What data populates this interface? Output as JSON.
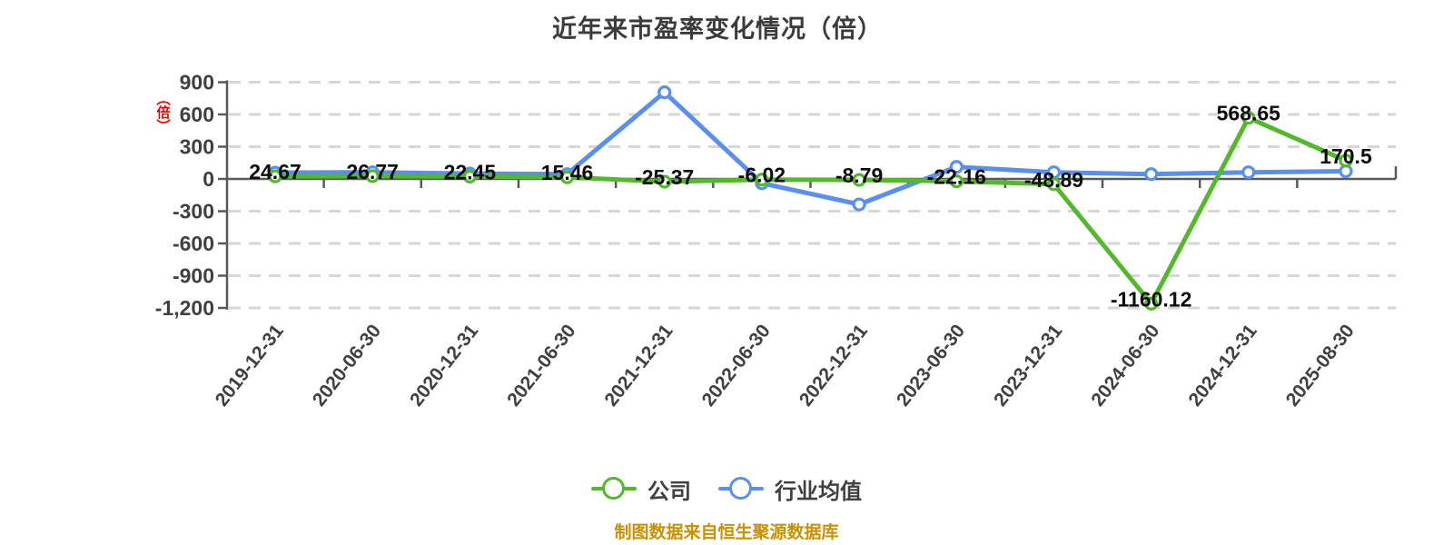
{
  "title": "近年来市盈率变化情况（倍）",
  "y_axis_unit_label": "（倍）",
  "footer": "制图数据来自恒生聚源数据库",
  "colors": {
    "company_green": "#53b82c",
    "industry_blue": "#5a8fee",
    "grid_gray": "#d6d6d6",
    "axis_gray": "#595959",
    "data_label_black": "#0c0c0c",
    "tick_text_gray": "#404040",
    "title_gray": "#3b3b3b",
    "unit_red": "#e60000",
    "footer_gold": "#c79100"
  },
  "legend": {
    "items": [
      {
        "label": "公司",
        "color": "#53b82c"
      },
      {
        "label": "行业均值",
        "color": "#5a8fee"
      }
    ]
  },
  "chart_data": {
    "type": "line",
    "title": "近年来市盈率变化情况（倍）",
    "xlabel": "",
    "ylabel": "（倍）",
    "ylim": [
      -1200,
      900
    ],
    "grid": "horizontal-dashed",
    "legend_position": "bottom",
    "categories": [
      "2019-12-31",
      "2020-06-30",
      "2020-12-31",
      "2021-06-30",
      "2021-12-31",
      "2022-06-30",
      "2022-12-31",
      "2023-06-30",
      "2023-12-31",
      "2024-06-30",
      "2024-12-31",
      "2025-08-30"
    ],
    "y_ticks": [
      {
        "value": 900,
        "label": "900"
      },
      {
        "value": 600,
        "label": "600"
      },
      {
        "value": 300,
        "label": "300"
      },
      {
        "value": 0,
        "label": "0"
      },
      {
        "value": -300,
        "label": "-300"
      },
      {
        "value": -600,
        "label": "-600"
      },
      {
        "value": -900,
        "label": "-900"
      },
      {
        "value": -1200,
        "label": "-1,200"
      }
    ],
    "series": [
      {
        "name": "公司",
        "color": "#53b82c",
        "show_labels": true,
        "values": [
          24.67,
          26.77,
          22.45,
          15.46,
          -25.37,
          -6.02,
          -8.79,
          -22.16,
          -48.89,
          -1160.12,
          568.65,
          170.5
        ],
        "labels": [
          "24.67",
          "26.77",
          "22.45",
          "15.46",
          "-25.37",
          "-6.02",
          "-8.79",
          "-22.16",
          "-48.89",
          "-1160.12",
          "568.65",
          "170.5"
        ]
      },
      {
        "name": "行业均值",
        "color": "#5a8fee",
        "show_labels": false,
        "values_estimated": true,
        "values": [
          58,
          62,
          50,
          45,
          806,
          -40,
          -237,
          112,
          62,
          45,
          62,
          72
        ]
      }
    ]
  }
}
